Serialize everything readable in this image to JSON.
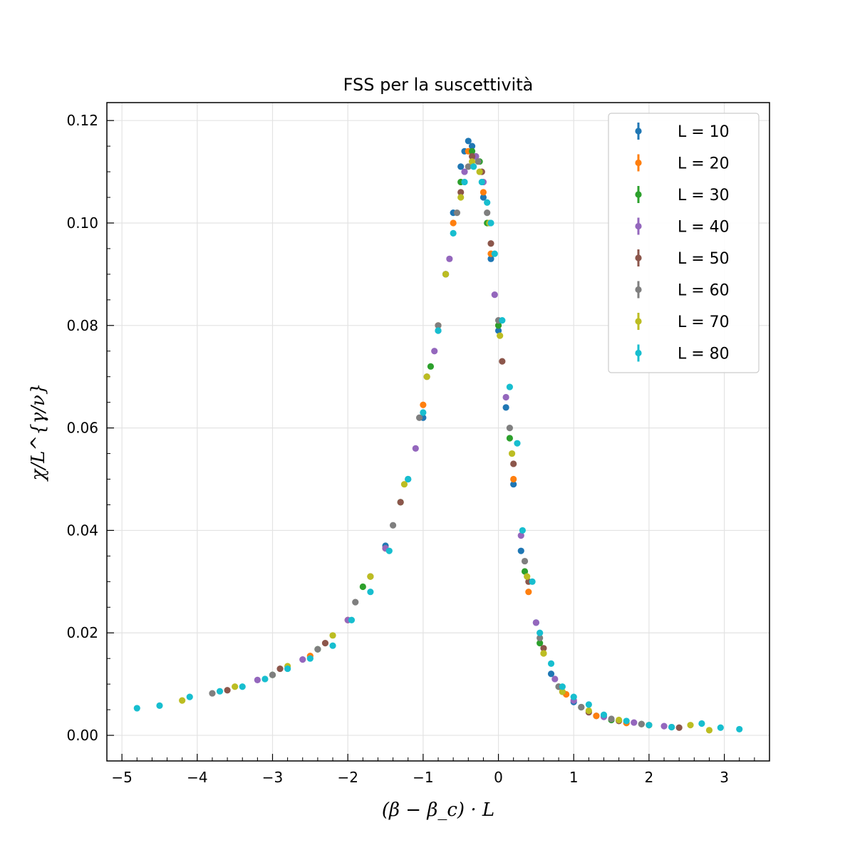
{
  "chart_data": {
    "type": "scatter",
    "title": "FSS per la suscettività",
    "xlabel": "(β − β_c) · L",
    "ylabel": "χ/L^{γ/ν}",
    "xlim": [
      -5.2,
      3.6
    ],
    "ylim": [
      -0.005,
      0.1235
    ],
    "xticks": [
      -5,
      -4,
      -3,
      -2,
      -1,
      0,
      1,
      2,
      3
    ],
    "xtick_labels": [
      "−5",
      "−4",
      "−3",
      "−2",
      "−1",
      "0",
      "1",
      "2",
      "3"
    ],
    "yticks": [
      0.0,
      0.02,
      0.04,
      0.06,
      0.08,
      0.1,
      0.12
    ],
    "ytick_labels": [
      "0.00",
      "0.02",
      "0.04",
      "0.06",
      "0.08",
      "0.10",
      "0.12"
    ],
    "grid": true,
    "legend_position": "top-right",
    "series": [
      {
        "name": "L = 10",
        "color": "#1f77b4",
        "x": [
          -1.5,
          -1.2,
          -1.0,
          -0.8,
          -0.7,
          -0.6,
          -0.5,
          -0.45,
          -0.4,
          -0.35,
          -0.3,
          -0.2,
          -0.1,
          0.0,
          0.1,
          0.2,
          0.3,
          0.5,
          0.7,
          1.0,
          1.3
        ],
        "y": [
          0.037,
          0.05,
          0.062,
          0.079,
          0.09,
          0.102,
          0.111,
          0.114,
          0.116,
          0.115,
          0.113,
          0.105,
          0.093,
          0.079,
          0.064,
          0.049,
          0.036,
          0.022,
          0.012,
          0.0065,
          0.0038
        ]
      },
      {
        "name": "L = 20",
        "color": "#ff7f0e",
        "x": [
          -2.5,
          -2.0,
          -1.5,
          -1.0,
          -0.8,
          -0.6,
          -0.4,
          -0.3,
          -0.2,
          -0.1,
          0.0,
          0.2,
          0.4,
          0.6,
          0.9,
          1.3,
          1.7
        ],
        "y": [
          0.0155,
          0.0225,
          0.0365,
          0.0645,
          0.08,
          0.1,
          0.114,
          0.113,
          0.106,
          0.094,
          0.08,
          0.05,
          0.028,
          0.016,
          0.008,
          0.0038,
          0.0024
        ]
      },
      {
        "name": "L = 30",
        "color": "#2ca02c",
        "x": [
          -3.0,
          -2.4,
          -1.8,
          -1.3,
          -0.9,
          -0.7,
          -0.5,
          -0.35,
          -0.25,
          -0.15,
          0.0,
          0.15,
          0.35,
          0.55,
          0.8,
          1.1,
          1.5,
          1.9
        ],
        "y": [
          0.0118,
          0.0168,
          0.029,
          0.0455,
          0.072,
          0.09,
          0.108,
          0.114,
          0.112,
          0.1,
          0.08,
          0.058,
          0.032,
          0.018,
          0.0095,
          0.0055,
          0.003,
          0.0022
        ]
      },
      {
        "name": "L = 40",
        "color": "#9467bd",
        "x": [
          -3.2,
          -2.6,
          -2.0,
          -1.5,
          -1.1,
          -0.85,
          -0.65,
          -0.45,
          -0.3,
          -0.2,
          -0.05,
          0.1,
          0.3,
          0.5,
          0.75,
          1.0,
          1.4,
          1.8,
          2.2
        ],
        "y": [
          0.0108,
          0.0148,
          0.0225,
          0.0365,
          0.056,
          0.075,
          0.093,
          0.11,
          0.113,
          0.108,
          0.086,
          0.066,
          0.039,
          0.022,
          0.011,
          0.0068,
          0.0036,
          0.0025,
          0.0018
        ]
      },
      {
        "name": "L = 50",
        "color": "#8c564b",
        "x": [
          -3.6,
          -2.9,
          -2.3,
          -1.7,
          -1.3,
          -0.95,
          -0.7,
          -0.5,
          -0.35,
          -0.22,
          -0.1,
          0.05,
          0.2,
          0.4,
          0.6,
          0.85,
          1.2,
          1.6,
          2.0,
          2.4
        ],
        "y": [
          0.0088,
          0.013,
          0.018,
          0.031,
          0.0455,
          0.07,
          0.09,
          0.106,
          0.113,
          0.11,
          0.096,
          0.073,
          0.053,
          0.03,
          0.017,
          0.0085,
          0.0045,
          0.0028,
          0.002,
          0.0015
        ]
      },
      {
        "name": "L = 60",
        "color": "#7f7f7f",
        "x": [
          -3.8,
          -3.0,
          -2.4,
          -1.9,
          -1.4,
          -1.05,
          -0.8,
          -0.55,
          -0.4,
          -0.27,
          -0.15,
          0.0,
          0.15,
          0.35,
          0.55,
          0.8,
          1.1,
          1.5,
          1.9,
          2.3
        ],
        "y": [
          0.0082,
          0.0118,
          0.0168,
          0.026,
          0.041,
          0.062,
          0.08,
          0.102,
          0.111,
          0.112,
          0.102,
          0.081,
          0.06,
          0.034,
          0.019,
          0.0095,
          0.0055,
          0.0032,
          0.0022,
          0.0016
        ]
      },
      {
        "name": "L = 70",
        "color": "#bcbd22",
        "x": [
          -4.2,
          -3.5,
          -2.8,
          -2.2,
          -1.7,
          -1.25,
          -0.95,
          -0.7,
          -0.5,
          -0.35,
          -0.25,
          -0.12,
          0.02,
          0.18,
          0.38,
          0.6,
          0.85,
          1.2,
          1.6,
          2.0,
          2.55,
          2.8
        ],
        "y": [
          0.0068,
          0.0095,
          0.0135,
          0.0195,
          0.031,
          0.049,
          0.07,
          0.09,
          0.105,
          0.112,
          0.11,
          0.1,
          0.078,
          0.055,
          0.031,
          0.016,
          0.0085,
          0.0048,
          0.003,
          0.002,
          0.002,
          0.001
        ]
      },
      {
        "name": "L = 80",
        "color": "#17becf",
        "x": [
          -4.8,
          -4.5,
          -4.1,
          -3.7,
          -3.4,
          -3.1,
          -2.8,
          -2.5,
          -2.2,
          -1.95,
          -1.7,
          -1.45,
          -1.2,
          -1.0,
          -0.8,
          -0.6,
          -0.45,
          -0.33,
          -0.22,
          -0.15,
          -0.1,
          -0.05,
          0.05,
          0.15,
          0.25,
          0.32,
          0.45,
          0.55,
          0.7,
          0.85,
          1.0,
          1.2,
          1.4,
          1.7,
          2.0,
          2.3,
          2.7,
          2.95,
          3.2
        ],
        "y": [
          0.0053,
          0.0058,
          0.0075,
          0.0086,
          0.0095,
          0.011,
          0.013,
          0.015,
          0.0175,
          0.0225,
          0.028,
          0.036,
          0.05,
          0.063,
          0.079,
          0.098,
          0.108,
          0.111,
          0.108,
          0.104,
          0.1,
          0.094,
          0.081,
          0.068,
          0.057,
          0.04,
          0.03,
          0.02,
          0.014,
          0.0095,
          0.0075,
          0.006,
          0.004,
          0.0028,
          0.002,
          0.0016,
          0.0023,
          0.0015,
          0.0012
        ]
      }
    ]
  }
}
